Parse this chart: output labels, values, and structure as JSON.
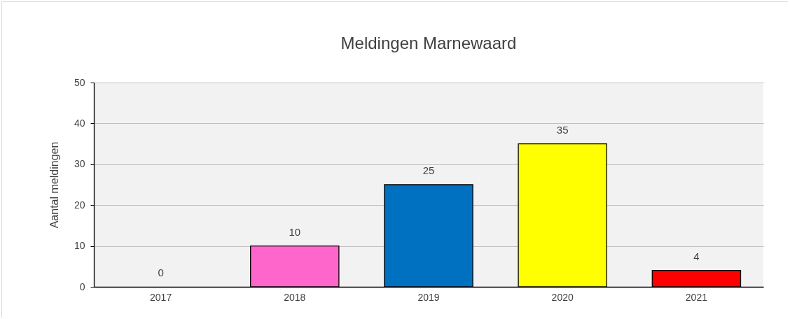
{
  "chart_data": {
    "type": "bar",
    "title": "Meldingen Marnewaard",
    "ylabel": "Aantal meldingen",
    "categories": [
      "2017",
      "2018",
      "2019",
      "2020",
      "2021"
    ],
    "values": [
      0,
      10,
      25,
      35,
      4
    ],
    "colors": [
      "#ffffff",
      "#ff66cc",
      "#0070c0",
      "#ffff00",
      "#ff0000"
    ],
    "ylim": [
      0,
      50
    ],
    "yticks": [
      0,
      10,
      20,
      30,
      40,
      50
    ],
    "grid": "y",
    "data_labels": true
  }
}
